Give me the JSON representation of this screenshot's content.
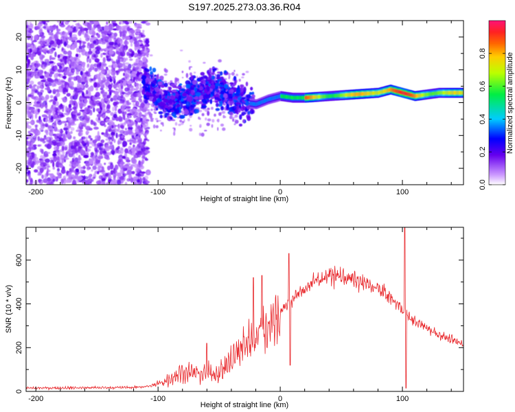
{
  "title": "S197.2025.273.03.36.R04",
  "chart_data": [
    {
      "type": "heatmap",
      "title": "S197.2025.273.03.36.R04",
      "xlabel": "Height of straight line (km)",
      "ylabel": "Frequency (Hz)",
      "xlim": [
        -208,
        150
      ],
      "ylim": [
        -25,
        25
      ],
      "xticks": [
        -200,
        -100,
        0,
        100
      ],
      "yticks": [
        -20,
        -10,
        0,
        10,
        20
      ],
      "xtick_labels": [
        "-200",
        "-100",
        "0",
        "100"
      ],
      "ytick_labels": [
        "-20",
        "-10",
        "0",
        "10",
        "20"
      ],
      "colorbar": {
        "label": "Normalized spectral amplitude",
        "range": [
          0,
          1
        ],
        "ticks": [
          "0.0",
          "0.2",
          "0.4",
          "0.6",
          "0.8"
        ]
      },
      "ridge": {
        "description": "dominant spectral line frequency vs height",
        "x": [
          -110,
          -90,
          -70,
          -55,
          -40,
          -30,
          -20,
          -10,
          0,
          10,
          20,
          40,
          60,
          80,
          90,
          100,
          110,
          130,
          150
        ],
        "freq": [
          6,
          0,
          3,
          5,
          2,
          0,
          -0.5,
          1,
          2,
          1.5,
          1.5,
          2,
          2.5,
          3,
          4,
          3,
          2,
          3,
          3
        ]
      }
    },
    {
      "type": "line",
      "xlabel": "Height of straight line (km)",
      "ylabel": "SNR (10 * v/v)",
      "xlim": [
        -208,
        150
      ],
      "ylim": [
        0,
        750
      ],
      "xticks": [
        -200,
        -100,
        0,
        100
      ],
      "yticks": [
        0,
        200,
        400,
        600
      ],
      "xtick_labels": [
        "-200",
        "-100",
        "0",
        "100"
      ],
      "ytick_labels": [
        "0",
        "200",
        "400",
        "600"
      ],
      "color": "#e8262a",
      "envelope": {
        "x": [
          -208,
          -120,
          -105,
          -95,
          -80,
          -65,
          -50,
          -40,
          -30,
          -20,
          -10,
          0,
          10,
          20,
          30,
          40,
          50,
          60,
          70,
          80,
          90,
          95,
          100,
          105,
          110,
          120,
          130,
          140,
          150
        ],
        "snr": [
          15,
          18,
          25,
          45,
          90,
          80,
          85,
          140,
          210,
          260,
          300,
          360,
          420,
          470,
          510,
          530,
          525,
          510,
          490,
          470,
          430,
          400,
          380,
          340,
          320,
          290,
          260,
          235,
          215
        ]
      },
      "spikes": [
        {
          "x": -60,
          "snr": 220
        },
        {
          "x": -22,
          "snr": 520
        },
        {
          "x": -15,
          "snr": 530
        },
        {
          "x": 7,
          "snr": 630
        },
        {
          "x": 8,
          "snr": 120
        },
        {
          "x": 102,
          "snr": 750
        },
        {
          "x": 103,
          "snr": 15
        }
      ]
    }
  ]
}
